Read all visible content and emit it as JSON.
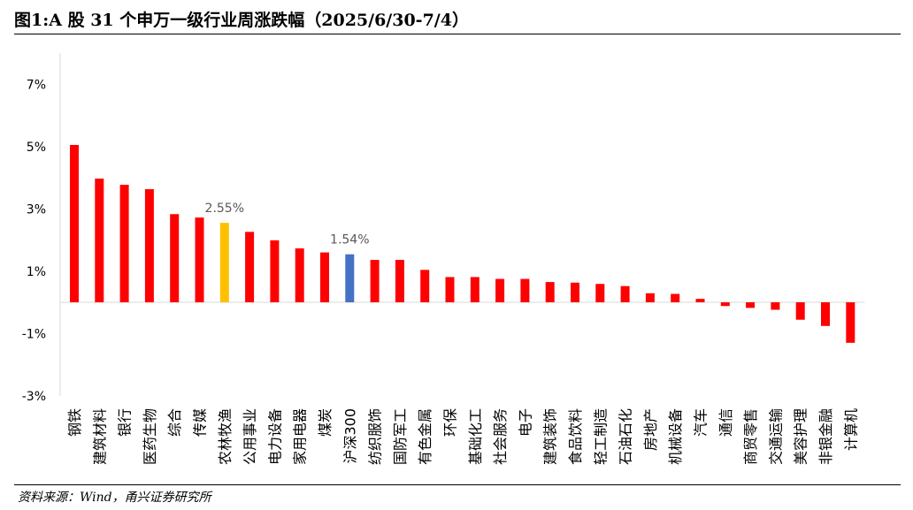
{
  "title": "图1:A 股 31 个申万一级行业周涨跌幅（2025/6/30-7/4）",
  "source": "资料来源：Wind，甬兴证券研究所",
  "colors": {
    "default": "#FF0000",
    "highlight_agri": "#FFC000",
    "highlight_index": "#4472C4",
    "axis": "#D9D9D9",
    "label": "#595959"
  },
  "chart_data": {
    "type": "bar",
    "categories": [
      "钢铁",
      "建筑材料",
      "银行",
      "医药生物",
      "综合",
      "传媒",
      "农林牧渔",
      "公用事业",
      "电力设备",
      "家用电器",
      "煤炭",
      "沪深300",
      "纺织服饰",
      "国防军工",
      "有色金属",
      "环保",
      "基础化工",
      "社会服务",
      "电子",
      "建筑装饰",
      "食品饮料",
      "轻工制造",
      "石油石化",
      "房地产",
      "机械设备",
      "汽车",
      "通信",
      "商贸零售",
      "交通运输",
      "美容护理",
      "非银金融",
      "计算机"
    ],
    "values": [
      5.05,
      3.97,
      3.77,
      3.63,
      2.83,
      2.72,
      2.55,
      2.26,
      1.99,
      1.73,
      1.6,
      1.54,
      1.36,
      1.36,
      1.04,
      0.81,
      0.81,
      0.75,
      0.75,
      0.65,
      0.63,
      0.59,
      0.52,
      0.29,
      0.27,
      0.11,
      -0.12,
      -0.18,
      -0.24,
      -0.56,
      -0.76,
      -1.3
    ],
    "bar_colors": [
      "default",
      "default",
      "default",
      "default",
      "default",
      "default",
      "highlight_agri",
      "default",
      "default",
      "default",
      "default",
      "highlight_index",
      "default",
      "default",
      "default",
      "default",
      "default",
      "default",
      "default",
      "default",
      "default",
      "default",
      "default",
      "default",
      "default",
      "default",
      "default",
      "default",
      "default",
      "default",
      "default",
      "default"
    ],
    "data_labels": [
      {
        "index": 6,
        "text": "2.55%"
      },
      {
        "index": 11,
        "text": "1.54%"
      }
    ],
    "yticks": [
      "-3%",
      "-1%",
      "1%",
      "3%",
      "5%",
      "7%"
    ],
    "ytick_values": [
      -3,
      -1,
      1,
      3,
      5,
      7
    ],
    "ylim": [
      -3,
      8
    ],
    "xlabel": "",
    "ylabel": "",
    "grid": false,
    "legend": "none"
  }
}
